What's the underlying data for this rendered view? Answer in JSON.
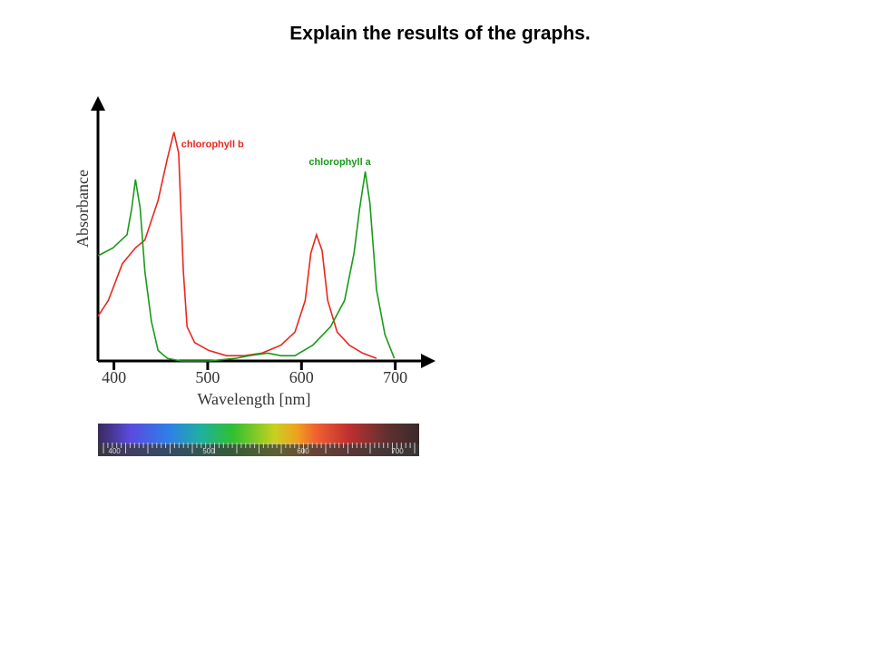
{
  "chart_data": {
    "type": "line",
    "title": "Explain the results of the graphs.",
    "x_label": "Wavelength [nm]",
    "y_label": "Absorbance",
    "xlim": [
      383,
      740
    ],
    "xticks": [
      400,
      500,
      600,
      700
    ],
    "ylim": [
      0,
      1
    ],
    "series": [
      {
        "name": "chlorophyll b",
        "color": "#e8281e",
        "x": [
          383,
          394,
          409,
          423,
          433,
          447,
          457,
          464,
          469,
          474,
          478,
          486,
          501,
          520,
          539,
          558,
          578,
          593,
          604,
          610,
          616,
          622,
          628,
          638,
          651,
          665,
          680
        ],
        "values": [
          0.17,
          0.23,
          0.37,
          0.43,
          0.46,
          0.61,
          0.77,
          0.87,
          0.79,
          0.34,
          0.13,
          0.07,
          0.04,
          0.02,
          0.02,
          0.03,
          0.06,
          0.11,
          0.23,
          0.41,
          0.48,
          0.42,
          0.23,
          0.11,
          0.06,
          0.03,
          0.01
        ]
      },
      {
        "name": "chlorophyll a",
        "color": "#1a9a1a",
        "x": [
          383,
          399,
          414,
          419,
          423,
          428,
          433,
          440,
          447,
          457,
          472,
          501,
          530,
          544,
          564,
          578,
          593,
          612,
          631,
          646,
          656,
          662,
          668,
          673,
          680,
          689,
          699
        ],
        "values": [
          0.4,
          0.43,
          0.48,
          0.58,
          0.69,
          0.58,
          0.34,
          0.15,
          0.04,
          0.01,
          0,
          0,
          0.01,
          0.02,
          0.03,
          0.02,
          0.02,
          0.06,
          0.13,
          0.23,
          0.41,
          0.58,
          0.72,
          0.6,
          0.27,
          0.1,
          0.01
        ]
      }
    ],
    "spectrum_labels": [
      400,
      500,
      600,
      700
    ]
  }
}
